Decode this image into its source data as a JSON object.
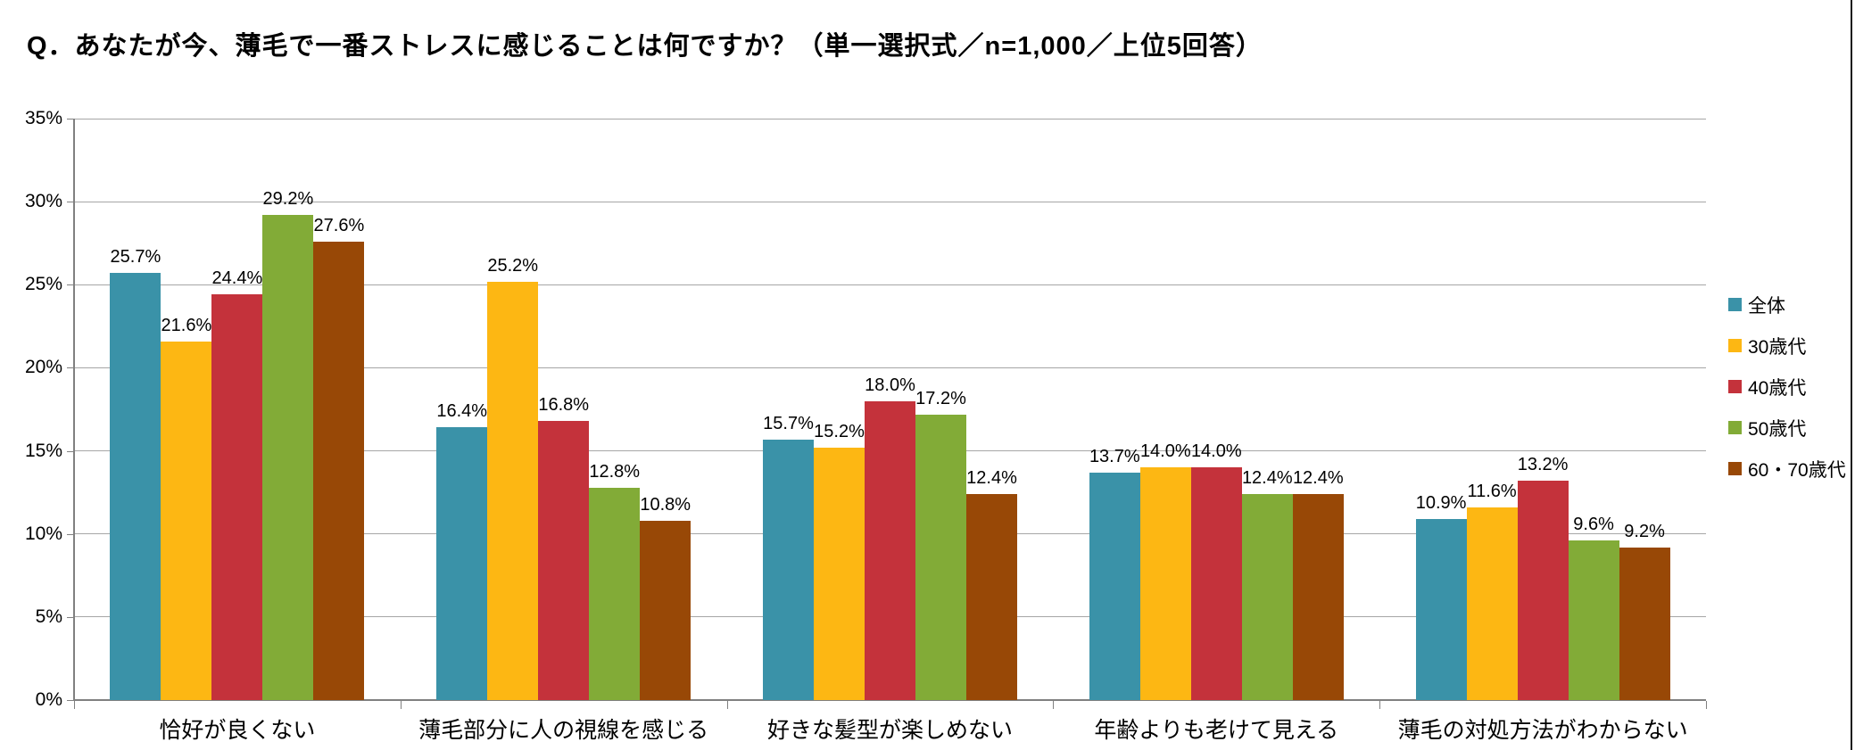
{
  "header": {
    "title": "Q．あなたが今、薄毛で一番ストレスに感じることは何ですか？（単一選択式／n=1,000／上位5回答）"
  },
  "chart_data": {
    "type": "bar",
    "title": "Q．あなたが今、薄毛で一番ストレスに感じることは何ですか？（単一選択式／n=1,000／上位5回答）",
    "categories": [
      "恰好が良くない",
      "薄毛部分に人の視線を感じる",
      "好きな髪型が楽しめない",
      "年齢よりも老けて見える",
      "薄毛の対処方法がわからない"
    ],
    "series": [
      {
        "name": "全体",
        "color": "#3A92A8",
        "values": [
          25.7,
          16.4,
          15.7,
          13.7,
          10.9
        ]
      },
      {
        "name": "30歳代",
        "color": "#FDB713",
        "values": [
          21.6,
          25.2,
          15.2,
          14.0,
          11.6
        ]
      },
      {
        "name": "40歳代",
        "color": "#C4323B",
        "values": [
          24.4,
          16.8,
          18.0,
          14.0,
          13.2
        ]
      },
      {
        "name": "50歳代",
        "color": "#82AB37",
        "values": [
          29.2,
          12.8,
          17.2,
          12.4,
          9.6
        ]
      },
      {
        "name": "60・70歳代",
        "color": "#984806",
        "values": [
          27.6,
          10.8,
          12.4,
          12.4,
          9.2
        ]
      }
    ],
    "value_suffix": "%",
    "value_decimals": 1,
    "xlabel": "",
    "ylabel": "",
    "ylim": [
      0,
      35
    ],
    "y_tick_step": 5,
    "y_tick_labels": [
      "0%",
      "5%",
      "10%",
      "15%",
      "20%",
      "25%",
      "30%",
      "35%"
    ],
    "grid": true,
    "legend_position": "right",
    "gridline_color": "#A6A6A6",
    "axis_color": "#808080",
    "label_color": "#000000"
  }
}
